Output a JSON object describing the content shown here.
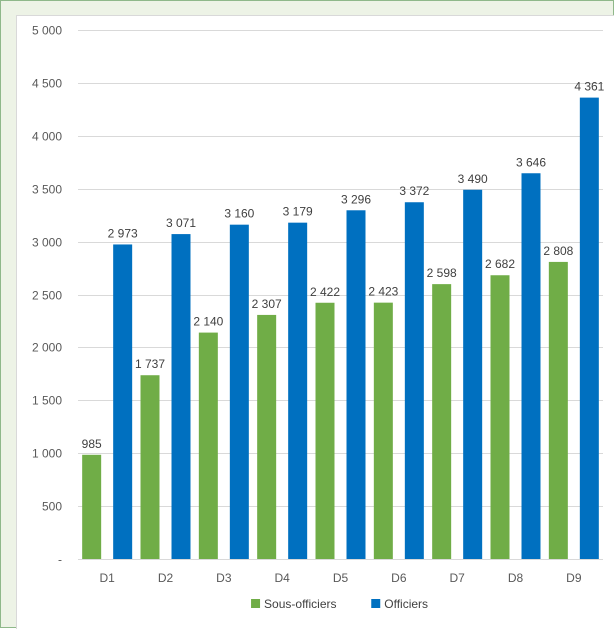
{
  "chart_data": {
    "type": "bar",
    "categories": [
      "D1",
      "D2",
      "D3",
      "D4",
      "D5",
      "D6",
      "D7",
      "D8",
      "D9"
    ],
    "series": [
      {
        "name": "Sous-officiers",
        "color": "#70ad47",
        "values": [
          985,
          1737,
          2140,
          2307,
          2422,
          2423,
          2598,
          2682,
          2808
        ],
        "labels": [
          "985",
          "1 737",
          "2 140",
          "2 307",
          "2 422",
          "2 423",
          "2 598",
          "2 682",
          "2 808"
        ]
      },
      {
        "name": "Officiers",
        "color": "#0070c0",
        "values": [
          2973,
          3071,
          3160,
          3179,
          3296,
          3372,
          3490,
          3646,
          4361
        ],
        "labels": [
          "2 973",
          "3 071",
          "3 160",
          "3 179",
          "3 296",
          "3 372",
          "3 490",
          "3 646",
          "4 361"
        ]
      }
    ],
    "yticks": [
      0,
      500,
      1000,
      1500,
      2000,
      2500,
      3000,
      3500,
      4000,
      4500,
      5000
    ],
    "ytick_labels": [
      "-",
      "500",
      "1 000",
      "1 500",
      "2 000",
      "2 500",
      "3 000",
      "3 500",
      "4 000",
      "4 500",
      "5 000"
    ],
    "ylim": [
      0,
      5000
    ],
    "grid": true,
    "legend_position": "bottom",
    "title": "",
    "xlabel": "",
    "ylabel": ""
  }
}
